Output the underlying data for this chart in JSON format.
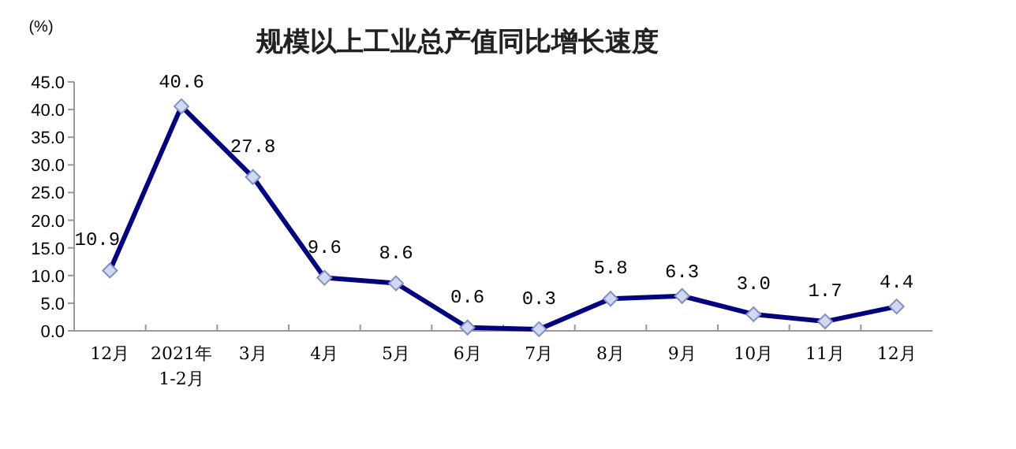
{
  "chart_data": {
    "type": "line",
    "title": "规模以上工业总产值同比增长速度",
    "ylabel": "(%)",
    "categories": [
      "12月",
      "2021年\n1-2月",
      "3月",
      "4月",
      "5月",
      "6月",
      "7月",
      "8月",
      "9月",
      "10月",
      "11月",
      "12月"
    ],
    "series": [
      {
        "color": "#000080",
        "values": [
          10.9,
          40.6,
          27.8,
          9.6,
          8.6,
          0.6,
          0.3,
          5.8,
          6.3,
          3.0,
          1.7,
          4.4
        ]
      }
    ],
    "value_labels": [
      "10.9",
      "40.6",
      "27.8",
      "9.6",
      "8.6",
      "0.6",
      "0.3",
      "5.8",
      "6.3",
      "3.0",
      "1.7",
      "4.4"
    ],
    "ylim": [
      0,
      45
    ],
    "yticks": [
      {
        "value": 0,
        "label": "0.0"
      },
      {
        "value": 5,
        "label": "5.0"
      },
      {
        "value": 10,
        "label": "10.0"
      },
      {
        "value": 15,
        "label": "15.0"
      },
      {
        "value": 20,
        "label": "20.0"
      },
      {
        "value": 25,
        "label": "25.0"
      },
      {
        "value": 30,
        "label": "30.0"
      },
      {
        "value": 35,
        "label": "35.0"
      },
      {
        "value": 40,
        "label": "40.0"
      },
      {
        "value": 45,
        "label": "45.0"
      }
    ],
    "marker": "diamond",
    "line_style": "solid"
  }
}
